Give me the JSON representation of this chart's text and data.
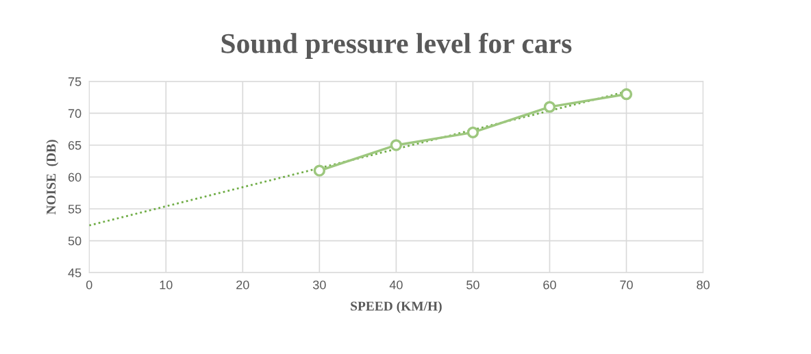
{
  "chart_data": {
    "type": "line",
    "title": "Sound pressure level for cars",
    "xlabel": "SPEED (KM/H)",
    "ylabel": "NOISE  (DB)",
    "xlim": [
      0,
      80
    ],
    "xticks": [
      0,
      10,
      20,
      30,
      40,
      50,
      60,
      70,
      80
    ],
    "ylim": [
      45,
      75
    ],
    "yticks": [
      45,
      50,
      55,
      60,
      65,
      70,
      75
    ],
    "grid": true,
    "legend": false,
    "series": [
      {
        "color": "#9dc77e",
        "x": [
          30,
          40,
          50,
          60,
          70
        ],
        "values": [
          61,
          65,
          67,
          71,
          73
        ],
        "marker": "circle",
        "line_style": "solid"
      },
      {
        "color": "#70ad47",
        "x": [
          0,
          70
        ],
        "values": [
          52.4,
          73.4
        ],
        "marker": "none",
        "line_style": "dotted"
      }
    ]
  }
}
